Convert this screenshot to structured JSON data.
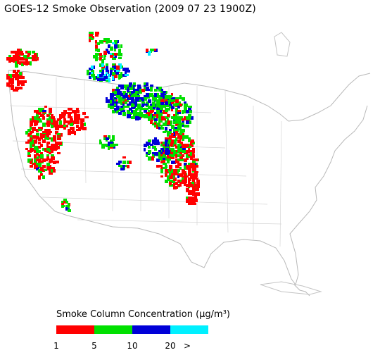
{
  "title": "GOES-12 Smoke Observation (2009 07 23  1900Z)",
  "legend": {
    "title": "Smoke Column Concentration (μg/m³)",
    "bins": [
      {
        "color": "#ff0000"
      },
      {
        "color": "#00e000"
      },
      {
        "color": "#0000d8"
      },
      {
        "color": "#00f0ff"
      }
    ],
    "ticks": [
      "1",
      "5",
      "10",
      "20",
      ">"
    ]
  }
}
